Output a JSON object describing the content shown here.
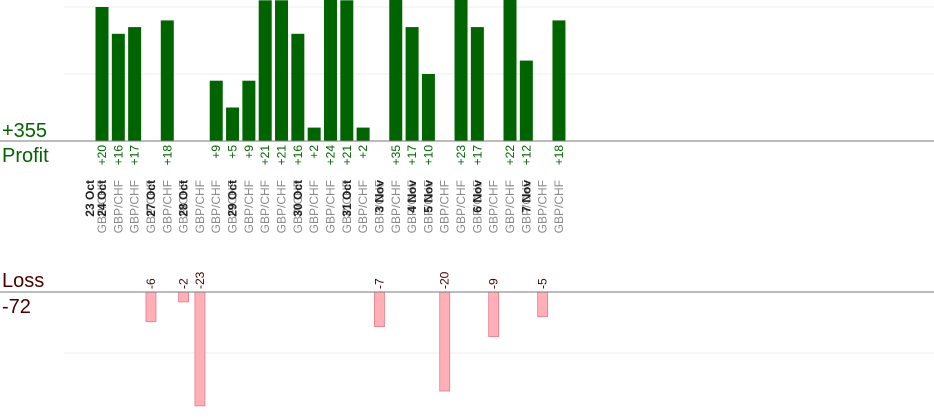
{
  "summary": {
    "profit_total": "+355",
    "profit_label": "Profit",
    "loss_label": "Loss",
    "loss_total": "-72"
  },
  "colors": {
    "profit_bar": "#006400",
    "loss_bar": "#ffb0b6",
    "profit_text": "#006400",
    "loss_text": "#4a0000",
    "pair_text": "#8a8a8a"
  },
  "chart_data": {
    "type": "bar",
    "profit_ylim": [
      0,
      25
    ],
    "loss_ylim": [
      -23,
      0
    ],
    "grid": true,
    "dates": [
      {
        "label": "23 Oct",
        "trades": [
          {
            "pair": "GBP/CHF",
            "value": 20
          }
        ]
      },
      {
        "label": "24 Oct",
        "trades": [
          {
            "pair": "GBP/CHF",
            "value": 16
          },
          {
            "pair": "GBP/CHF",
            "value": 17
          },
          {
            "pair": "GBP/CHF",
            "value": -6
          }
        ]
      },
      {
        "label": "27 Oct",
        "trades": [
          {
            "pair": "GBP/CHF",
            "value": 18
          },
          {
            "pair": "GBP/CHF",
            "value": -2
          }
        ]
      },
      {
        "label": "28 Oct",
        "trades": [
          {
            "pair": "GBP/CHF",
            "value": -23
          },
          {
            "pair": "GBP/CHF",
            "value": 9
          },
          {
            "pair": "GBP/CHF",
            "value": 5
          }
        ]
      },
      {
        "label": "29 Oct",
        "trades": [
          {
            "pair": "GBP/CHF",
            "value": 9
          },
          {
            "pair": "GBP/CHF",
            "value": 21
          },
          {
            "pair": "GBP/CHF",
            "value": 21
          },
          {
            "pair": "GBP/CHF",
            "value": 16
          }
        ]
      },
      {
        "label": "30 Oct",
        "trades": [
          {
            "pair": "GBP/CHF",
            "value": 2
          },
          {
            "pair": "GBP/CHF",
            "value": 24
          },
          {
            "pair": "GBP/CHF",
            "value": 21
          }
        ]
      },
      {
        "label": "31 Oct",
        "trades": [
          {
            "pair": "GBP/CHF",
            "value": 2
          },
          {
            "pair": "GBP/CHF",
            "value": -7
          }
        ]
      },
      {
        "label": "3 Nov",
        "trades": [
          {
            "pair": "GBP/CHF",
            "value": 35
          },
          {
            "pair": "GBP/CHF",
            "value": 17
          }
        ]
      },
      {
        "label": "4 Nov",
        "trades": [
          {
            "pair": "GBP/CHF",
            "value": 10
          }
        ]
      },
      {
        "label": "5 Nov",
        "trades": [
          {
            "pair": "GBP/CHF",
            "value": -20
          },
          {
            "pair": "GBP/CHF",
            "value": 23
          },
          {
            "pair": "GBP/CHF",
            "value": 17
          }
        ]
      },
      {
        "label": "6 Nov",
        "trades": [
          {
            "pair": "GBP/CHF",
            "value": -9
          },
          {
            "pair": "GBP/CHF",
            "value": 22
          },
          {
            "pair": "GBP/CHF",
            "value": 12
          }
        ]
      },
      {
        "label": "7 Nov",
        "trades": [
          {
            "pair": "GBP/CHF",
            "value": -5
          },
          {
            "pair": "GBP/CHF",
            "value": 18
          }
        ]
      }
    ]
  }
}
